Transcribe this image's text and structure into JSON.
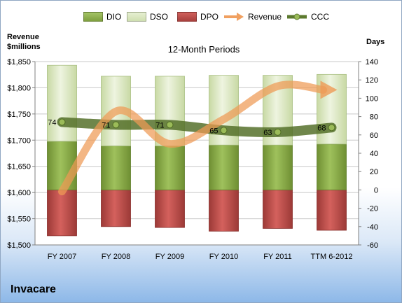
{
  "company": "Invacare",
  "chart_data": {
    "type": "bar",
    "title": "12-Month Periods",
    "left_axis_title_line1": "Revenue",
    "left_axis_title_line2": "$millions",
    "right_axis_title": "Days",
    "categories": [
      "FY 2007",
      "FY 2008",
      "FY 2009",
      "FY 2010",
      "FY 2011",
      "TTM 6-2012"
    ],
    "left_axis": {
      "min": 1500,
      "max": 1850,
      "step": 50,
      "tick_labels": [
        "$1,500",
        "$1,550",
        "$1,600",
        "$1,650",
        "$1,700",
        "$1,750",
        "$1,800",
        "$1,850"
      ]
    },
    "right_axis": {
      "min": -60,
      "max": 140,
      "step": 20,
      "tick_labels": [
        "-60",
        "-40",
        "-20",
        "0",
        "20",
        "40",
        "60",
        "80",
        "100",
        "120",
        "140"
      ]
    },
    "series": [
      {
        "name": "DIO",
        "axis": "right",
        "kind": "stacked-bar",
        "color": "#8db04a",
        "values": [
          53,
          48,
          48,
          49,
          49,
          50
        ]
      },
      {
        "name": "DSO",
        "axis": "right",
        "kind": "stacked-bar",
        "color": "#d7e4bd",
        "values": [
          83,
          76,
          76,
          76,
          76,
          76
        ]
      },
      {
        "name": "DPO",
        "axis": "right",
        "kind": "bar-negative",
        "color": "#c0504d",
        "values": [
          -50,
          -40,
          -41,
          -45,
          -42,
          -44
        ]
      },
      {
        "name": "Revenue",
        "axis": "left",
        "kind": "line",
        "color": "#f0a060",
        "values": [
          1602,
          1755,
          1693,
          1740,
          1803,
          1796
        ]
      },
      {
        "name": "CCC",
        "axis": "right",
        "kind": "line",
        "color": "#5c7a2e",
        "values": [
          74,
          71,
          71,
          65,
          63,
          68
        ],
        "labels": [
          "74",
          "71",
          "71",
          "65",
          "63",
          "68"
        ]
      }
    ],
    "grid": true,
    "legend_position": "top"
  }
}
